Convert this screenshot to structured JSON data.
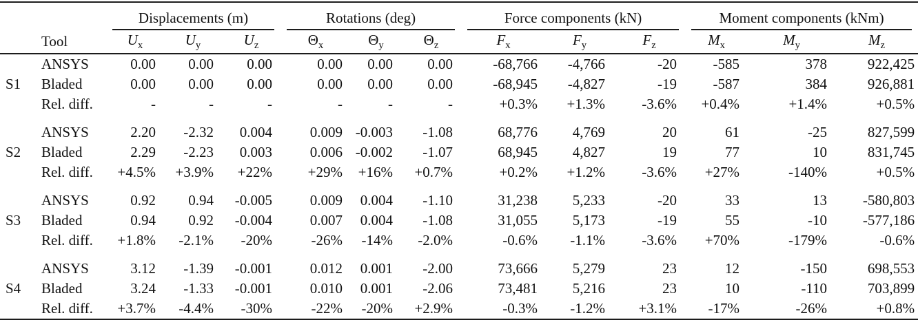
{
  "table": {
    "tool_header": "Tool",
    "groups": [
      {
        "key": "displacements",
        "label": "Displacements (m)",
        "cols": [
          {
            "key": "ux",
            "base": "U",
            "sub": "x",
            "italic": true
          },
          {
            "key": "uy",
            "base": "U",
            "sub": "y",
            "italic": true
          },
          {
            "key": "uz",
            "base": "U",
            "sub": "z",
            "italic": true
          }
        ]
      },
      {
        "key": "rotations",
        "label": "Rotations (deg)",
        "cols": [
          {
            "key": "theta-x",
            "base": "Θ",
            "sub": "x",
            "italic": false
          },
          {
            "key": "theta-y",
            "base": "Θ",
            "sub": "y",
            "italic": false
          },
          {
            "key": "theta-z",
            "base": "Θ",
            "sub": "z",
            "italic": false
          }
        ]
      },
      {
        "key": "forces",
        "label": "Force components (kN)",
        "cols": [
          {
            "key": "fx",
            "base": "F",
            "sub": "x",
            "italic": true
          },
          {
            "key": "fy",
            "base": "F",
            "sub": "y",
            "italic": true
          },
          {
            "key": "fz",
            "base": "F",
            "sub": "z",
            "italic": true
          }
        ]
      },
      {
        "key": "moments",
        "label": "Moment components (kNm)",
        "cols": [
          {
            "key": "mx",
            "base": "M",
            "sub": "x",
            "italic": true
          },
          {
            "key": "my",
            "base": "M",
            "sub": "y",
            "italic": true
          },
          {
            "key": "mz",
            "base": "M",
            "sub": "z",
            "italic": true
          }
        ]
      }
    ],
    "sections": [
      {
        "id": "S1",
        "rows": [
          {
            "tool": "ANSYS",
            "values": [
              "0.00",
              "0.00",
              "0.00",
              "0.00",
              "0.00",
              "0.00",
              "-68,766",
              "-4,766",
              "-20",
              "-585",
              "378",
              "922,425"
            ]
          },
          {
            "tool": "Bladed",
            "values": [
              "0.00",
              "0.00",
              "0.00",
              "0.00",
              "0.00",
              "0.00",
              "-68,945",
              "-4,827",
              "-19",
              "-587",
              "384",
              "926,881"
            ]
          },
          {
            "tool": "Rel. diff.",
            "values": [
              "-",
              "-",
              "-",
              "-",
              "-",
              "-",
              "+0.3%",
              "+1.3%",
              "-3.6%",
              "+0.4%",
              "+1.4%",
              "+0.5%"
            ]
          }
        ]
      },
      {
        "id": "S2",
        "rows": [
          {
            "tool": "ANSYS",
            "values": [
              "2.20",
              "-2.32",
              "0.004",
              "0.009",
              "-0.003",
              "-1.08",
              "68,776",
              "4,769",
              "20",
              "61",
              "-25",
              "827,599"
            ]
          },
          {
            "tool": "Bladed",
            "values": [
              "2.29",
              "-2.23",
              "0.003",
              "0.006",
              "-0.002",
              "-1.07",
              "68,945",
              "4,827",
              "19",
              "77",
              "10",
              "831,745"
            ]
          },
          {
            "tool": "Rel. diff.",
            "values": [
              "+4.5%",
              "+3.9%",
              "+22%",
              "+29%",
              "+16%",
              "+0.7%",
              "+0.2%",
              "+1.2%",
              "-3.6%",
              "+27%",
              "-140%",
              "+0.5%"
            ]
          }
        ]
      },
      {
        "id": "S3",
        "rows": [
          {
            "tool": "ANSYS",
            "values": [
              "0.92",
              "0.94",
              "-0.005",
              "0.009",
              "0.004",
              "-1.10",
              "31,238",
              "5,233",
              "-20",
              "33",
              "13",
              "-580,803"
            ]
          },
          {
            "tool": "Bladed",
            "values": [
              "0.94",
              "0.92",
              "-0.004",
              "0.007",
              "0.004",
              "-1.08",
              "31,055",
              "5,173",
              "-19",
              "55",
              "-10",
              "-577,186"
            ]
          },
          {
            "tool": "Rel. diff.",
            "values": [
              "+1.8%",
              "-2.1%",
              "-20%",
              "-26%",
              "-14%",
              "-2.0%",
              "-0.6%",
              "-1.1%",
              "-3.6%",
              "+70%",
              "-179%",
              "-0.6%"
            ]
          }
        ]
      },
      {
        "id": "S4",
        "rows": [
          {
            "tool": "ANSYS",
            "values": [
              "3.12",
              "-1.39",
              "-0.001",
              "0.012",
              "0.001",
              "-2.00",
              "73,666",
              "5,279",
              "23",
              "12",
              "-150",
              "698,553"
            ]
          },
          {
            "tool": "Bladed",
            "values": [
              "3.24",
              "-1.33",
              "-0.001",
              "0.010",
              "0.001",
              "-2.06",
              "73,481",
              "5,216",
              "23",
              "10",
              "-110",
              "703,899"
            ]
          },
          {
            "tool": "Rel. diff.",
            "values": [
              "+3.7%",
              "-4.4%",
              "-30%",
              "-22%",
              "-20%",
              "+2.9%",
              "-0.3%",
              "-1.2%",
              "+3.1%",
              "-17%",
              "-26%",
              "+0.8%"
            ]
          }
        ]
      }
    ]
  }
}
